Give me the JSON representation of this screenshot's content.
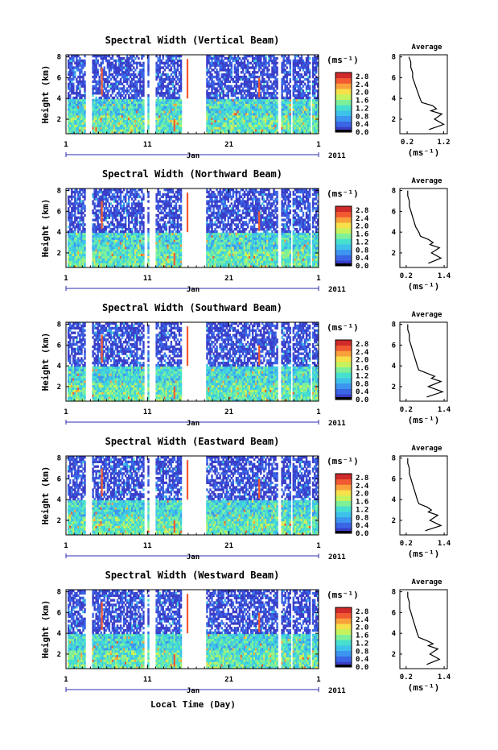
{
  "figure": {
    "xlabel": "Local Time (Day)",
    "month_label": "Jan",
    "year_label": "2011",
    "avg_title": "Average",
    "ylabel": "Height (km)",
    "unit_label": "(ms⁻¹)",
    "avg_xlabel": "(ms⁻¹)"
  },
  "chart_data": [
    {
      "type": "heatmap",
      "title": "Spectral Width (Vertical Beam)",
      "ylabel": "Height (km)",
      "x_ticks": [
        "1",
        "11",
        "21",
        "1"
      ],
      "xlim": [
        1,
        32
      ],
      "y_ticks": [
        "2",
        "4",
        "6",
        "8"
      ],
      "ylim": [
        0.6,
        8.2
      ],
      "colorbar_ticks": [
        "0.0",
        "0.4",
        "0.8",
        "1.2",
        "1.6",
        "2.0",
        "2.4",
        "2.8"
      ],
      "colorbar_range": [
        0,
        3.0
      ],
      "data_gaps_days": [
        [
          1.0,
          1.3
        ],
        [
          3.4,
          4.2
        ],
        [
          10.7,
          11.0
        ],
        [
          11.15,
          12.1
        ],
        [
          15.3,
          18.2
        ],
        [
          27.1,
          27.4
        ],
        [
          28.6,
          28.8
        ],
        [
          31.1,
          31.3
        ]
      ],
      "average_profile": {
        "title": "Average",
        "xlabel": "(ms⁻¹)",
        "x_ticks": [
          "0.2",
          "1.2"
        ],
        "xlim": [
          0.0,
          1.3
        ],
        "y_ticks": [
          "2",
          "4",
          "6",
          "8"
        ],
        "ylim": [
          0.6,
          8.2
        ],
        "height": [
          1.0,
          1.5,
          2.0,
          2.5,
          2.8,
          3.0,
          3.3,
          3.6,
          4.0,
          4.5,
          5.0,
          5.5,
          6.0,
          6.5,
          7.0,
          7.5,
          8.0
        ],
        "value": [
          0.8,
          1.2,
          0.95,
          1.15,
          0.85,
          1.0,
          0.9,
          0.6,
          0.55,
          0.5,
          0.45,
          0.4,
          0.35,
          0.35,
          0.3,
          0.3,
          0.25
        ]
      }
    },
    {
      "type": "heatmap",
      "title": "Spectral Width (Northward Beam)",
      "ylabel": "Height (km)",
      "x_ticks": [
        "1",
        "11",
        "21",
        "1"
      ],
      "xlim": [
        1,
        32
      ],
      "y_ticks": [
        "2",
        "4",
        "6",
        "8"
      ],
      "ylim": [
        0.6,
        8.2
      ],
      "colorbar_ticks": [
        "0.0",
        "0.4",
        "0.8",
        "1.2",
        "1.6",
        "2.0",
        "2.4",
        "2.8"
      ],
      "colorbar_range": [
        0,
        3.0
      ],
      "data_gaps_days": [
        [
          1.0,
          1.3
        ],
        [
          3.4,
          4.2
        ],
        [
          10.7,
          11.0
        ],
        [
          11.15,
          12.1
        ],
        [
          15.3,
          18.2
        ],
        [
          27.1,
          27.4
        ],
        [
          28.6,
          28.8
        ],
        [
          31.1,
          31.3
        ]
      ],
      "average_profile": {
        "title": "Average",
        "xlabel": "(ms⁻¹)",
        "x_ticks": [
          "0.2",
          "1.4"
        ],
        "xlim": [
          0.0,
          1.5
        ],
        "y_ticks": [
          "2",
          "4",
          "6",
          "8"
        ],
        "ylim": [
          0.6,
          8.2
        ],
        "height": [
          1.0,
          1.5,
          2.0,
          2.5,
          2.8,
          3.0,
          3.3,
          3.6,
          4.0,
          4.5,
          5.0,
          5.5,
          6.0,
          6.5,
          7.0,
          7.5,
          8.0
        ],
        "value": [
          0.9,
          1.3,
          1.0,
          1.25,
          0.95,
          1.05,
          0.9,
          0.65,
          0.6,
          0.5,
          0.45,
          0.4,
          0.35,
          0.3,
          0.3,
          0.25,
          0.25
        ]
      }
    },
    {
      "type": "heatmap",
      "title": "Spectral Width (Southward Beam)",
      "ylabel": "Height (km)",
      "x_ticks": [
        "1",
        "11",
        "21",
        "1"
      ],
      "xlim": [
        1,
        32
      ],
      "y_ticks": [
        "2",
        "4",
        "6",
        "8"
      ],
      "ylim": [
        0.6,
        8.2
      ],
      "colorbar_ticks": [
        "0.0",
        "0.4",
        "0.8",
        "1.2",
        "1.6",
        "2.0",
        "2.4",
        "2.8"
      ],
      "colorbar_range": [
        0,
        3.0
      ],
      "data_gaps_days": [
        [
          1.0,
          1.3
        ],
        [
          3.4,
          4.2
        ],
        [
          10.7,
          11.0
        ],
        [
          11.15,
          12.1
        ],
        [
          15.3,
          18.2
        ],
        [
          27.1,
          27.4
        ],
        [
          28.6,
          28.8
        ],
        [
          31.1,
          31.3
        ]
      ],
      "average_profile": {
        "title": "Average",
        "xlabel": "(ms⁻¹)",
        "x_ticks": [
          "0.2",
          "1.4"
        ],
        "xlim": [
          0.0,
          1.5
        ],
        "y_ticks": [
          "2",
          "4",
          "6",
          "8"
        ],
        "ylim": [
          0.6,
          8.2
        ],
        "height": [
          1.0,
          1.5,
          2.0,
          2.5,
          2.8,
          3.0,
          3.3,
          3.6,
          4.0,
          4.5,
          5.0,
          5.5,
          6.0,
          6.5,
          7.0,
          7.5,
          8.0
        ],
        "value": [
          0.85,
          1.35,
          0.9,
          1.3,
          1.0,
          1.1,
          0.85,
          0.6,
          0.55,
          0.5,
          0.45,
          0.4,
          0.35,
          0.3,
          0.3,
          0.25,
          0.25
        ]
      }
    },
    {
      "type": "heatmap",
      "title": "Spectral Width (Eastward Beam)",
      "ylabel": "Height (km)",
      "x_ticks": [
        "1",
        "11",
        "21",
        "1"
      ],
      "xlim": [
        1,
        32
      ],
      "y_ticks": [
        "2",
        "4",
        "6",
        "8"
      ],
      "ylim": [
        0.6,
        8.2
      ],
      "colorbar_ticks": [
        "0.0",
        "0.4",
        "0.8",
        "1.2",
        "1.6",
        "2.0",
        "2.4",
        "2.8"
      ],
      "colorbar_range": [
        0,
        3.0
      ],
      "data_gaps_days": [
        [
          1.0,
          1.3
        ],
        [
          3.4,
          4.2
        ],
        [
          10.7,
          11.0
        ],
        [
          11.15,
          12.1
        ],
        [
          15.3,
          18.2
        ],
        [
          27.1,
          27.4
        ],
        [
          28.6,
          28.8
        ],
        [
          31.1,
          31.3
        ]
      ],
      "average_profile": {
        "title": "Average",
        "xlabel": "(ms⁻¹)",
        "x_ticks": [
          "0.2",
          "1.4"
        ],
        "xlim": [
          0.0,
          1.5
        ],
        "y_ticks": [
          "2",
          "4",
          "6",
          "8"
        ],
        "ylim": [
          0.6,
          8.2
        ],
        "height": [
          1.0,
          1.5,
          2.0,
          2.5,
          2.8,
          3.0,
          3.3,
          3.6,
          4.0,
          4.5,
          5.0,
          5.5,
          6.0,
          6.5,
          7.0,
          7.5,
          8.0
        ],
        "value": [
          0.8,
          1.3,
          0.95,
          1.2,
          0.9,
          1.0,
          0.85,
          0.6,
          0.55,
          0.5,
          0.45,
          0.4,
          0.35,
          0.3,
          0.3,
          0.25,
          0.25
        ]
      }
    },
    {
      "type": "heatmap",
      "title": "Spectral Width (Westward Beam)",
      "ylabel": "Height (km)",
      "x_ticks": [
        "1",
        "11",
        "21",
        "1"
      ],
      "xlim": [
        1,
        32
      ],
      "y_ticks": [
        "2",
        "4",
        "6",
        "8"
      ],
      "ylim": [
        0.6,
        8.2
      ],
      "colorbar_ticks": [
        "0.0",
        "0.4",
        "0.8",
        "1.2",
        "1.6",
        "2.0",
        "2.4",
        "2.8"
      ],
      "colorbar_range": [
        0,
        3.0
      ],
      "data_gaps_days": [
        [
          1.0,
          1.3
        ],
        [
          3.4,
          4.2
        ],
        [
          10.7,
          11.0
        ],
        [
          11.15,
          12.1
        ],
        [
          15.3,
          18.2
        ],
        [
          27.1,
          27.4
        ],
        [
          28.6,
          28.8
        ],
        [
          31.1,
          31.3
        ]
      ],
      "average_profile": {
        "title": "Average",
        "xlabel": "(ms⁻¹)",
        "x_ticks": [
          "0.2",
          "1.4"
        ],
        "xlim": [
          0.0,
          1.5
        ],
        "y_ticks": [
          "2",
          "4",
          "6",
          "8"
        ],
        "ylim": [
          0.6,
          8.2
        ],
        "height": [
          1.0,
          1.5,
          2.0,
          2.5,
          2.8,
          3.0,
          3.3,
          3.6,
          4.0,
          4.5,
          5.0,
          5.5,
          6.0,
          6.5,
          7.0,
          7.5,
          8.0
        ],
        "value": [
          0.85,
          1.25,
          0.95,
          1.2,
          0.9,
          1.05,
          0.85,
          0.6,
          0.55,
          0.5,
          0.45,
          0.4,
          0.35,
          0.3,
          0.3,
          0.25,
          0.25
        ]
      }
    }
  ],
  "colors": {
    "colormap": [
      "#3a3ec8",
      "#3a66e6",
      "#3c95ee",
      "#3fc2ea",
      "#46e0cf",
      "#7ef09a",
      "#c6f25e",
      "#f7e04a",
      "#f9a23c",
      "#f25a32",
      "#d02a2a"
    ],
    "axis": "#000000",
    "timeline": "#2b2bb0"
  }
}
